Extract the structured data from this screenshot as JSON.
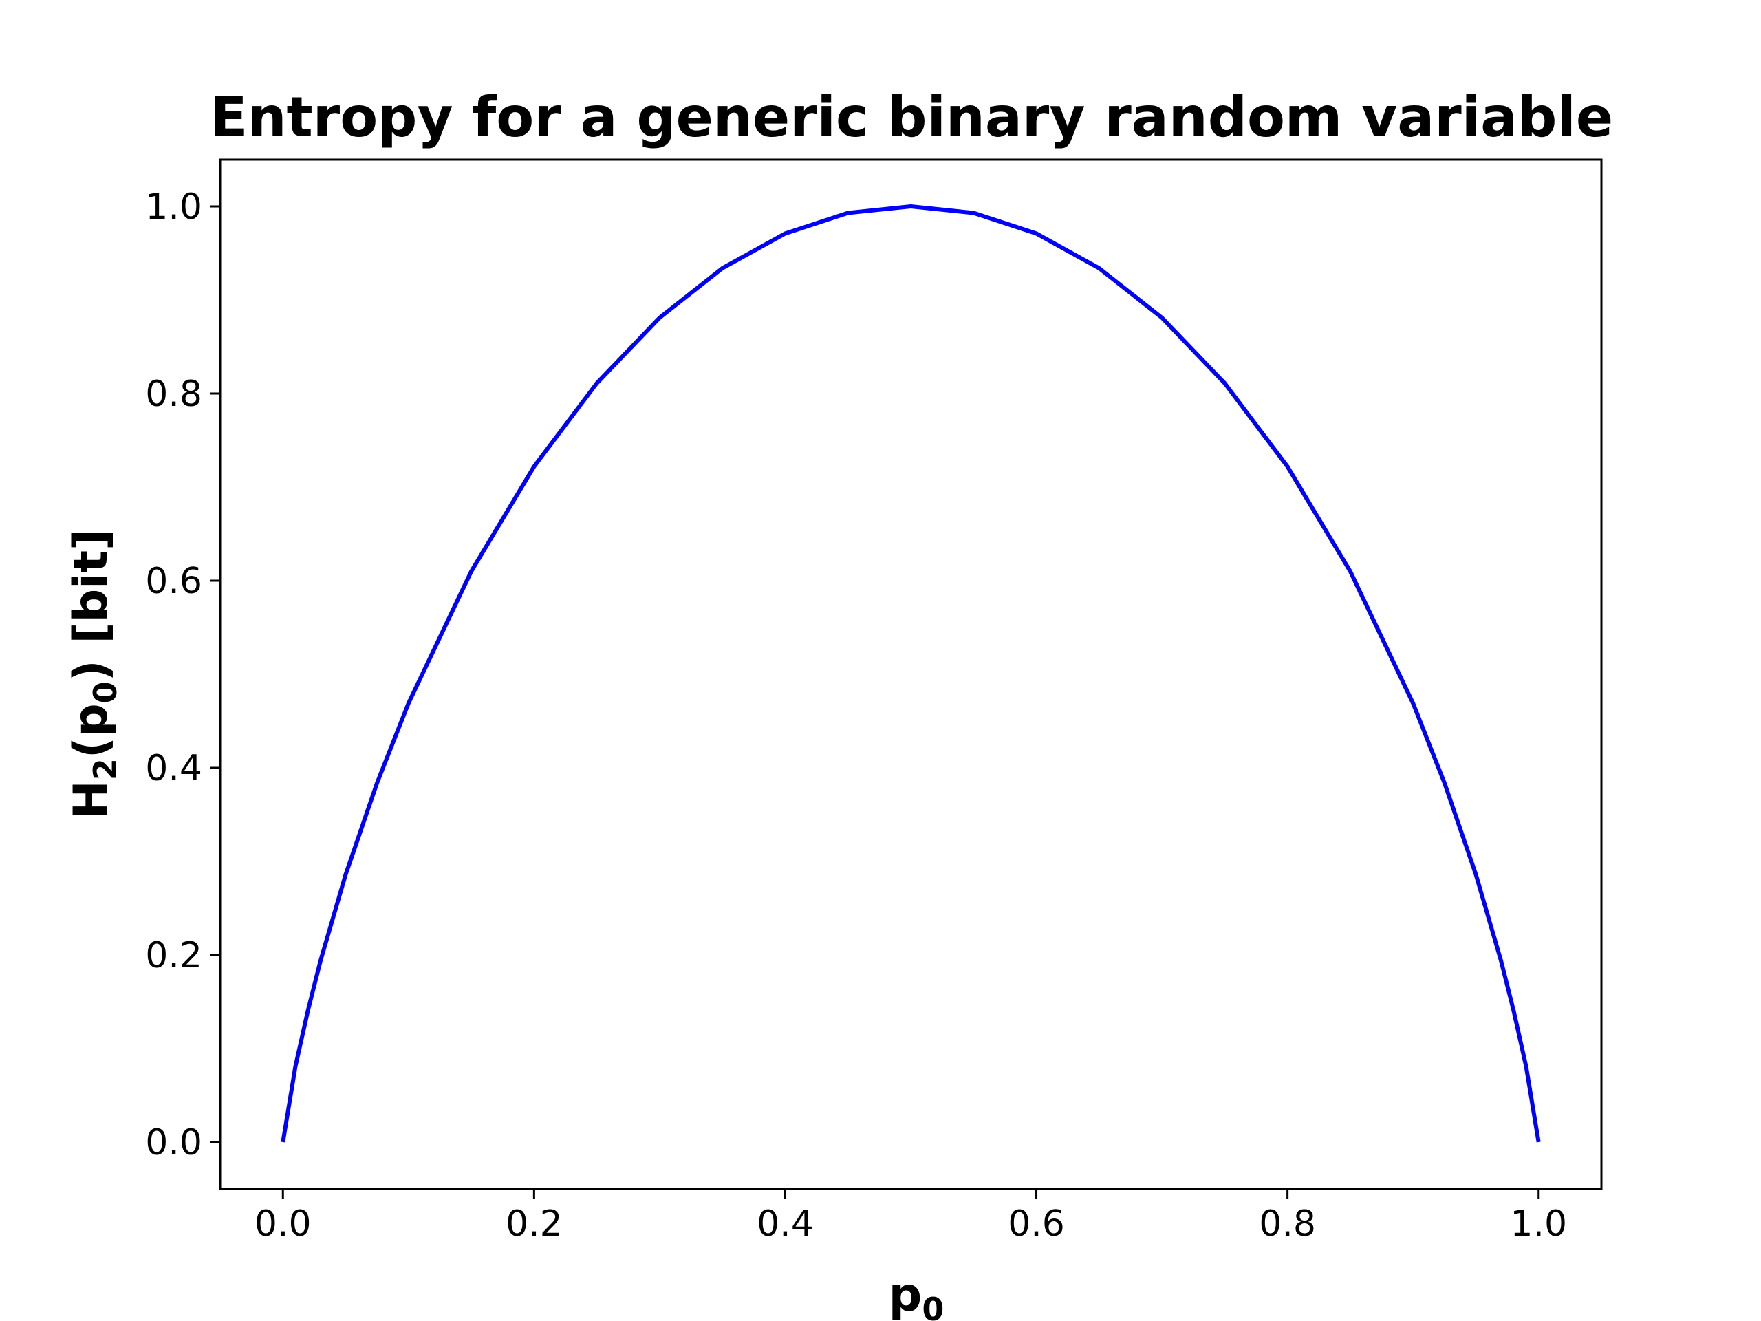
{
  "chart_data": {
    "type": "line",
    "title": "Entropy for a generic binary random variable",
    "xlabel": "p0",
    "xlabel_parts": {
      "base": "p",
      "sub": "0"
    },
    "ylabel": "H2(p0) [bit]",
    "ylabel_parts": {
      "H": "H",
      "H_sub": "2",
      "open": "(p",
      "p_sub": "0",
      "close": ") [bit]"
    },
    "xlim": [
      -0.05,
      1.05
    ],
    "ylim": [
      -0.05,
      1.05
    ],
    "xticks": [
      0.0,
      0.2,
      0.4,
      0.6,
      0.8,
      1.0
    ],
    "xtick_labels": [
      "0.0",
      "0.2",
      "0.4",
      "0.6",
      "0.8",
      "1.0"
    ],
    "yticks": [
      0.0,
      0.2,
      0.4,
      0.6,
      0.8,
      1.0
    ],
    "ytick_labels": [
      "0.0",
      "0.2",
      "0.4",
      "0.6",
      "0.8",
      "1.0"
    ],
    "grid": false,
    "legend": "none",
    "series": [
      {
        "color": "#0000ff",
        "function": "H2(p0) = -p0*log2(p0) - (1-p0)*log2(1-p0)",
        "x": [
          0.0,
          0.01,
          0.02,
          0.03,
          0.05,
          0.075,
          0.1,
          0.15,
          0.2,
          0.25,
          0.3,
          0.35,
          0.4,
          0.45,
          0.5,
          0.55,
          0.6,
          0.65,
          0.7,
          0.75,
          0.8,
          0.85,
          0.9,
          0.925,
          0.95,
          0.97,
          0.98,
          0.99,
          1.0
        ],
        "y": [
          0.0,
          0.081,
          0.141,
          0.194,
          0.286,
          0.384,
          0.469,
          0.61,
          0.722,
          0.811,
          0.881,
          0.934,
          0.971,
          0.993,
          1.0,
          0.993,
          0.971,
          0.934,
          0.881,
          0.811,
          0.722,
          0.61,
          0.469,
          0.384,
          0.286,
          0.194,
          0.141,
          0.081,
          0.0
        ]
      }
    ]
  },
  "colors": {
    "line": "#0000ff",
    "axes": "#000000",
    "background": "#ffffff"
  }
}
